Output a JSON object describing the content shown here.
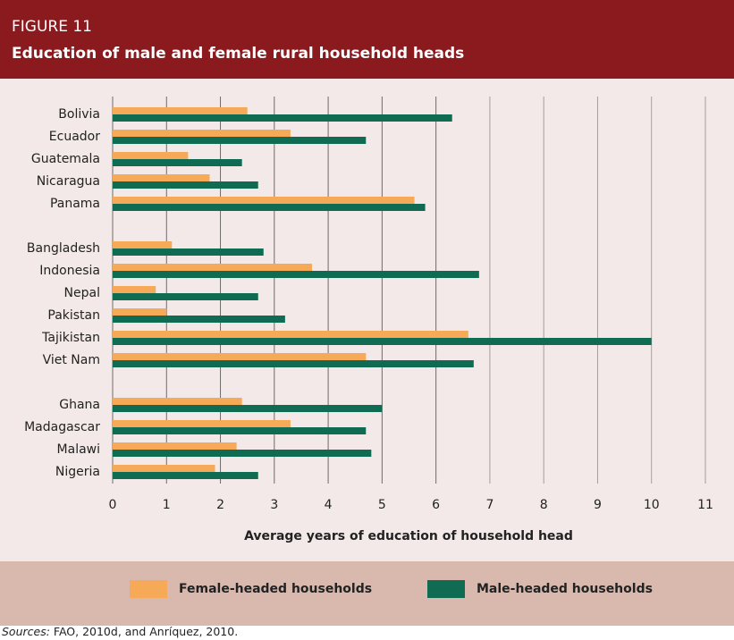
{
  "figure_label": "FIGURE 11",
  "title": "Education of male and female rural household heads",
  "sources_label": "Sources:",
  "sources_text": " FAO, 2010d, and Anríquez, 2010.",
  "colors": {
    "female": "#F6AA58",
    "male": "#0F6B52",
    "header": "#8B1A1F"
  },
  "chart_data": {
    "type": "bar",
    "orientation": "horizontal",
    "title": "Education of male and female rural household heads",
    "xlabel": "Average years of education of household head",
    "ylabel": "",
    "xlim": [
      0,
      11
    ],
    "xticks": [
      "0",
      "1",
      "2",
      "3",
      "4",
      "5",
      "6",
      "7",
      "8",
      "9",
      "10",
      "11"
    ],
    "grid": true,
    "legend_position": "bottom",
    "groups": [
      {
        "categories": [
          "Bolivia",
          "Ecuador",
          "Guatemala",
          "Nicaragua",
          "Panama"
        ]
      },
      {
        "categories": [
          "Bangladesh",
          "Indonesia",
          "Nepal",
          "Pakistan",
          "Tajikistan",
          "Viet Nam"
        ]
      },
      {
        "categories": [
          "Ghana",
          "Madagascar",
          "Malawi",
          "Nigeria"
        ]
      }
    ],
    "categories": [
      "Bolivia",
      "Ecuador",
      "Guatemala",
      "Nicaragua",
      "Panama",
      "Bangladesh",
      "Indonesia",
      "Nepal",
      "Pakistan",
      "Tajikistan",
      "Viet Nam",
      "Ghana",
      "Madagascar",
      "Malawi",
      "Nigeria"
    ],
    "series": [
      {
        "name": "Female-headed households",
        "values": [
          2.5,
          3.3,
          1.4,
          1.8,
          5.6,
          1.1,
          3.7,
          0.8,
          1.0,
          6.6,
          4.7,
          2.4,
          3.3,
          2.3,
          1.9
        ]
      },
      {
        "name": "Male-headed households",
        "values": [
          6.3,
          4.7,
          2.4,
          2.7,
          5.8,
          2.8,
          6.8,
          2.7,
          3.2,
          10.0,
          6.7,
          5.0,
          4.7,
          4.8,
          2.7
        ]
      }
    ]
  }
}
